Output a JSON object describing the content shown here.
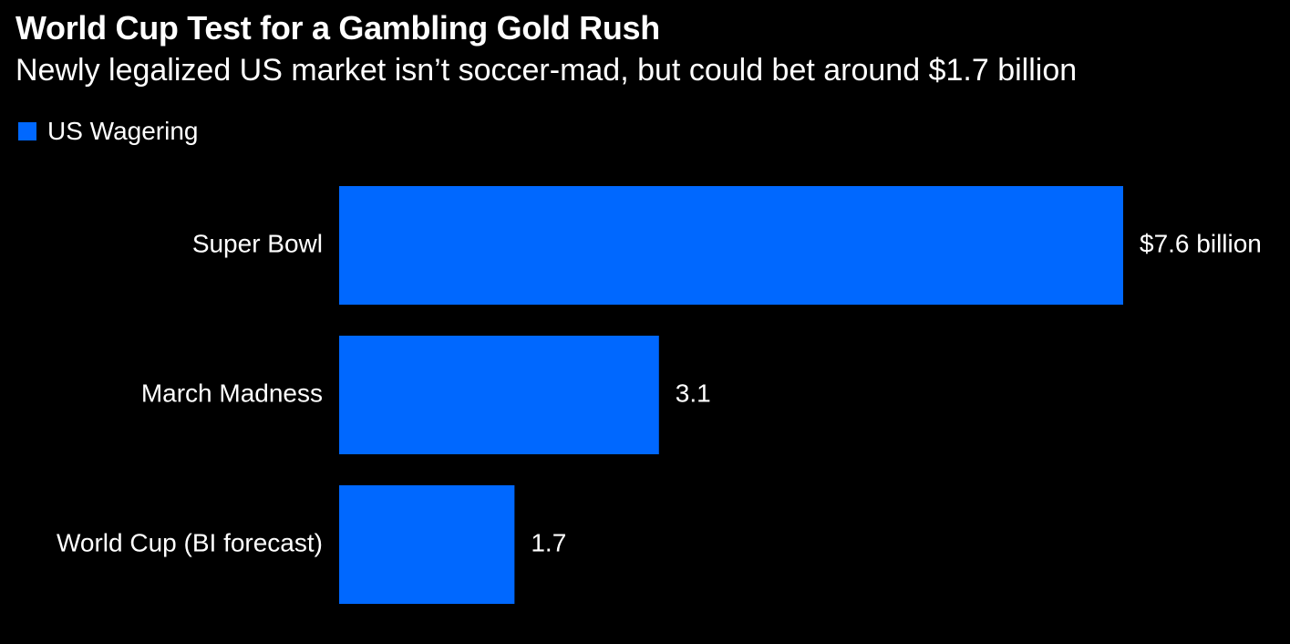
{
  "chart_data": {
    "type": "bar",
    "orientation": "horizontal",
    "title": "World Cup Test for a Gambling Gold Rush",
    "subtitle": "Newly legalized US market isn’t soccer-mad, but could bet around $1.7 billion",
    "categories": [
      "Super Bowl",
      "March Madness",
      "World Cup (BI forecast)"
    ],
    "series": [
      {
        "name": "US Wagering",
        "values": [
          7.6,
          3.1,
          1.7
        ],
        "value_labels": [
          "$7.6 billion",
          "3.1",
          "1.7"
        ],
        "color": "#0068ff"
      }
    ],
    "xlim": [
      0,
      7.6
    ],
    "grid": false,
    "legend_position": "top-left"
  },
  "colors": {
    "background": "#000000",
    "text": "#ffffff",
    "bar": "#0068ff"
  }
}
